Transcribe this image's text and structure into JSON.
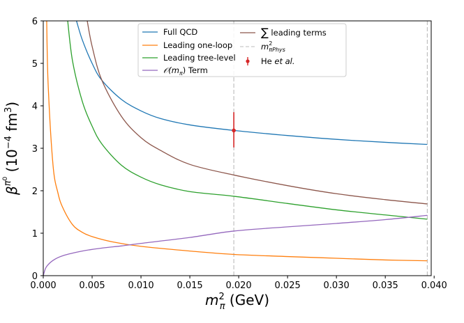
{
  "chart_data": {
    "type": "line",
    "title": "",
    "xlabel": "m_π² (GeV)",
    "xlabel_parts": {
      "base": "m",
      "sub": "π",
      "sup": "2",
      "unit": " (GeV)"
    },
    "ylabel": "β^{π⁰} (10⁻⁴ fm³)",
    "ylabel_parts": {
      "base": "β",
      "sup": "π",
      "supsup": "0",
      "open": " (10",
      "exp": "−4",
      "unit": " fm",
      "cube": "3",
      "close": ")"
    },
    "xlim": [
      0.0,
      0.0397
    ],
    "ylim": [
      0,
      6
    ],
    "xticks": [
      0.0,
      0.005,
      0.01,
      0.015,
      0.02,
      0.025,
      0.03,
      0.035,
      0.04
    ],
    "xtick_labels": [
      "0.000",
      "0.005",
      "0.010",
      "0.015",
      "0.020",
      "0.025",
      "0.030",
      "0.035",
      "0.040"
    ],
    "yticks": [
      0,
      1,
      2,
      3,
      4,
      5,
      6
    ],
    "ytick_labels": [
      "0",
      "1",
      "2",
      "3",
      "4",
      "5",
      "6"
    ],
    "grid": false,
    "legend_position": "top-center",
    "vertical_lines": [
      {
        "name": "m²_πPhys",
        "x": 0.0195,
        "color": "#bbbbbb"
      },
      {
        "name": "m²_πPhys",
        "x": 0.0393,
        "color": "#bbbbbb"
      }
    ],
    "series": [
      {
        "name": "Full QCD",
        "color": "#1f77b4",
        "x": [
          0.0034,
          0.004,
          0.005,
          0.006,
          0.008,
          0.01,
          0.012,
          0.015,
          0.0195,
          0.025,
          0.03,
          0.035,
          0.0393
        ],
        "y": [
          6.0,
          5.55,
          5.0,
          4.6,
          4.15,
          3.88,
          3.7,
          3.55,
          3.42,
          3.3,
          3.21,
          3.14,
          3.09
        ]
      },
      {
        "name": "Leading one-loop",
        "color": "#ff7f0e",
        "x": [
          0.00035,
          0.0005,
          0.001,
          0.0015,
          0.002,
          0.003,
          0.004,
          0.005,
          0.007,
          0.01,
          0.015,
          0.0195,
          0.025,
          0.03,
          0.035,
          0.0393
        ],
        "y": [
          6.0,
          4.5,
          2.6,
          1.95,
          1.6,
          1.2,
          1.02,
          0.92,
          0.8,
          0.69,
          0.58,
          0.5,
          0.45,
          0.41,
          0.37,
          0.35
        ]
      },
      {
        "name": "Leading tree-level",
        "color": "#2ca02c",
        "x": [
          0.0025,
          0.003,
          0.004,
          0.005,
          0.006,
          0.008,
          0.01,
          0.012,
          0.015,
          0.0195,
          0.025,
          0.03,
          0.035,
          0.0393
        ],
        "y": [
          6.0,
          5.05,
          4.1,
          3.52,
          3.1,
          2.6,
          2.32,
          2.14,
          1.98,
          1.87,
          1.7,
          1.55,
          1.43,
          1.33
        ]
      },
      {
        "name": "𝒪(m_π) Term",
        "color": "#9467bd",
        "x": [
          0.0,
          0.0003,
          0.001,
          0.002,
          0.004,
          0.006,
          0.008,
          0.01,
          0.015,
          0.0195,
          0.025,
          0.03,
          0.035,
          0.0393
        ],
        "y": [
          0.0,
          0.2,
          0.36,
          0.47,
          0.58,
          0.65,
          0.7,
          0.76,
          0.9,
          1.05,
          1.15,
          1.23,
          1.32,
          1.42
        ]
      },
      {
        "name": "∑ leading terms",
        "color": "#8c564b",
        "x": [
          0.0045,
          0.005,
          0.006,
          0.008,
          0.01,
          0.012,
          0.015,
          0.0195,
          0.025,
          0.03,
          0.035,
          0.0393
        ],
        "y": [
          6.0,
          5.4,
          4.6,
          3.75,
          3.25,
          2.95,
          2.62,
          2.37,
          2.12,
          1.93,
          1.79,
          1.69
        ]
      }
    ],
    "error_point": {
      "name": "He et al.",
      "color": "#d62728",
      "x": 0.0195,
      "y": 3.42,
      "yerr_low": 3.02,
      "yerr_high": 3.85
    },
    "legend": [
      {
        "label": "Full QCD",
        "kind": "line",
        "color": "#1f77b4"
      },
      {
        "label": "Leading one-loop",
        "kind": "line",
        "color": "#ff7f0e"
      },
      {
        "label": "Leading tree-level",
        "kind": "line",
        "color": "#2ca02c"
      },
      {
        "label": "𝒪(m",
        "label_sub": "π",
        "label_tail": ") Term",
        "kind": "line",
        "color": "#9467bd"
      },
      {
        "label": "∑",
        "label_tail": " leading terms",
        "kind": "line",
        "color": "#8c564b"
      },
      {
        "label": "m",
        "label_sub": "πPhys",
        "label_sup": "2",
        "kind": "dash",
        "color": "#bbbbbb"
      },
      {
        "label": "He ",
        "label_tail": "et al.",
        "kind": "errorbar",
        "color": "#d62728"
      }
    ]
  }
}
